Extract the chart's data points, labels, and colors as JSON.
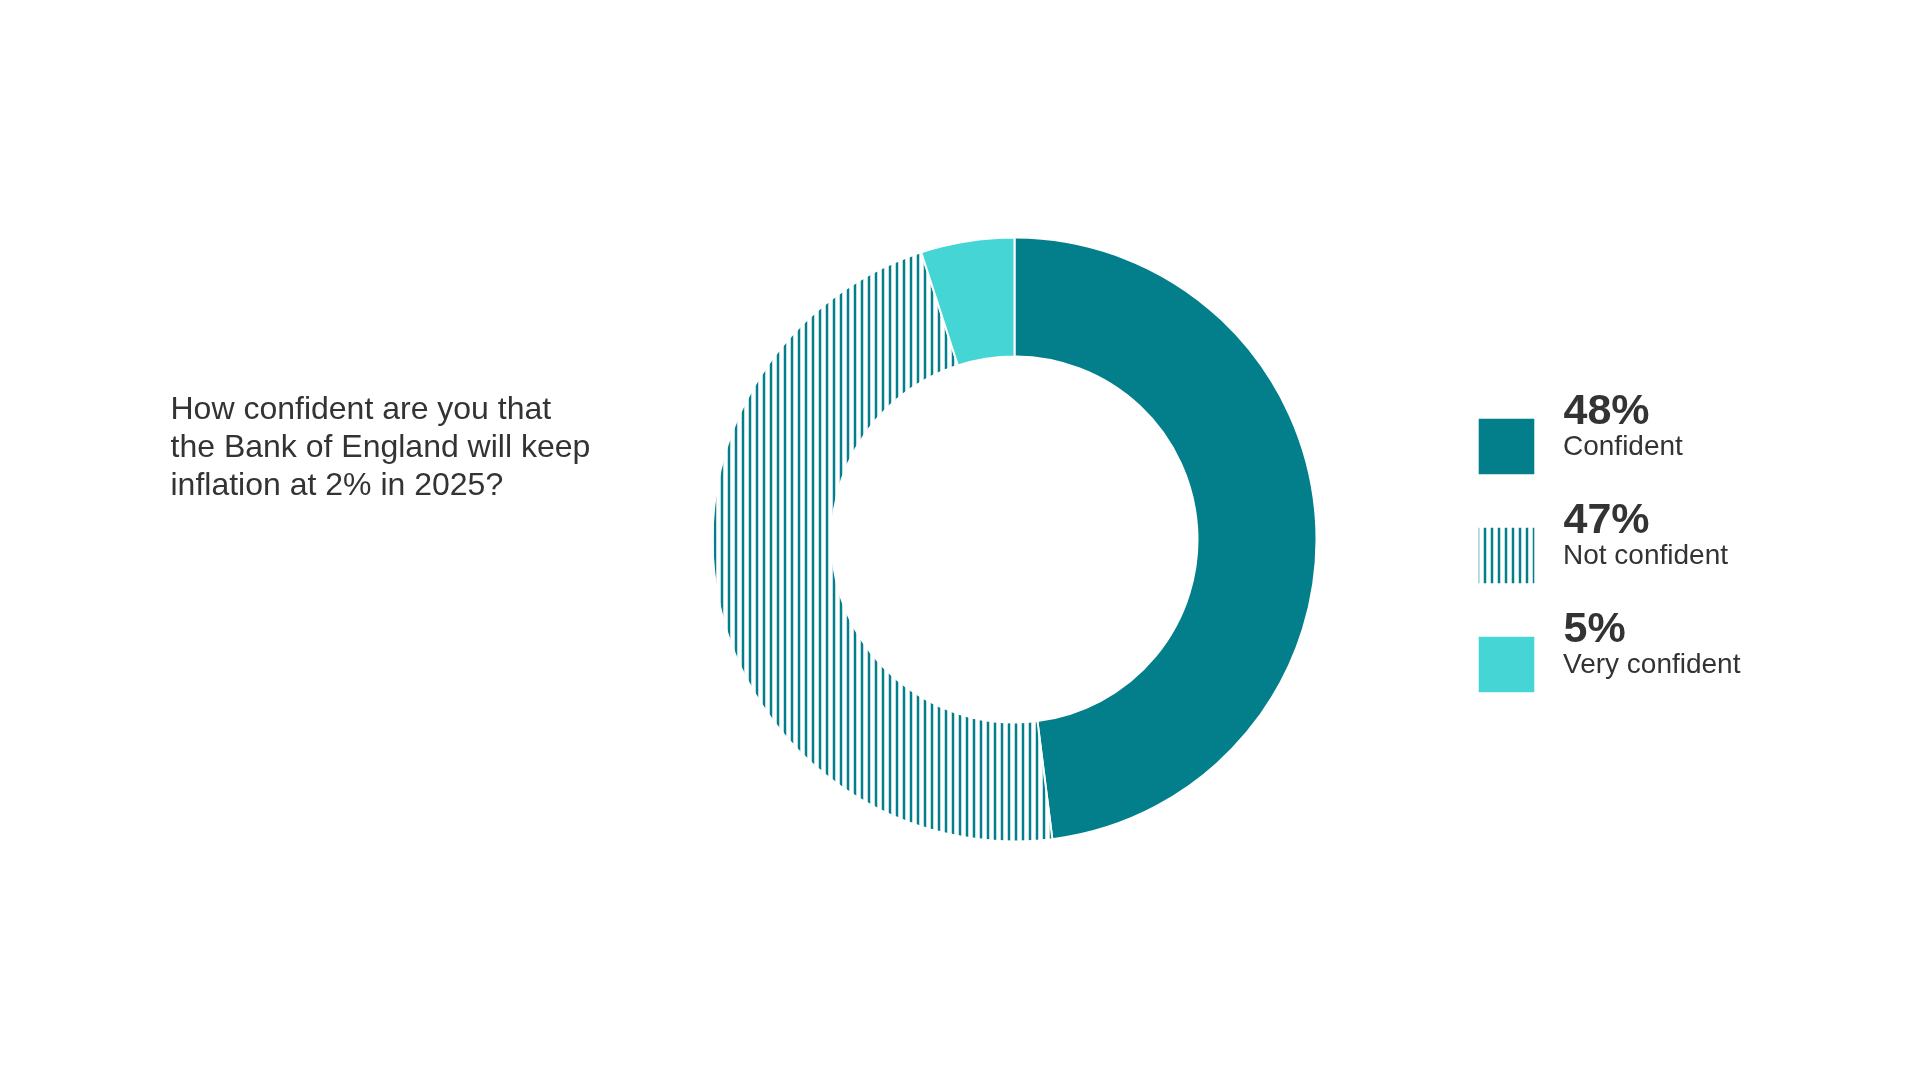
{
  "chart_data": {
    "type": "donut",
    "title": "How confident are you that the Bank of England will keep inflation at 2% in 2025?",
    "categories": [
      "Confident",
      "Not confident",
      "Very confident"
    ],
    "values": [
      48,
      47,
      5
    ],
    "colors": [
      "#037f8b",
      "#037f8b",
      "#45d5d5"
    ],
    "value_labels": [
      "48%",
      "47%",
      "5%"
    ],
    "legend": "right"
  }
}
